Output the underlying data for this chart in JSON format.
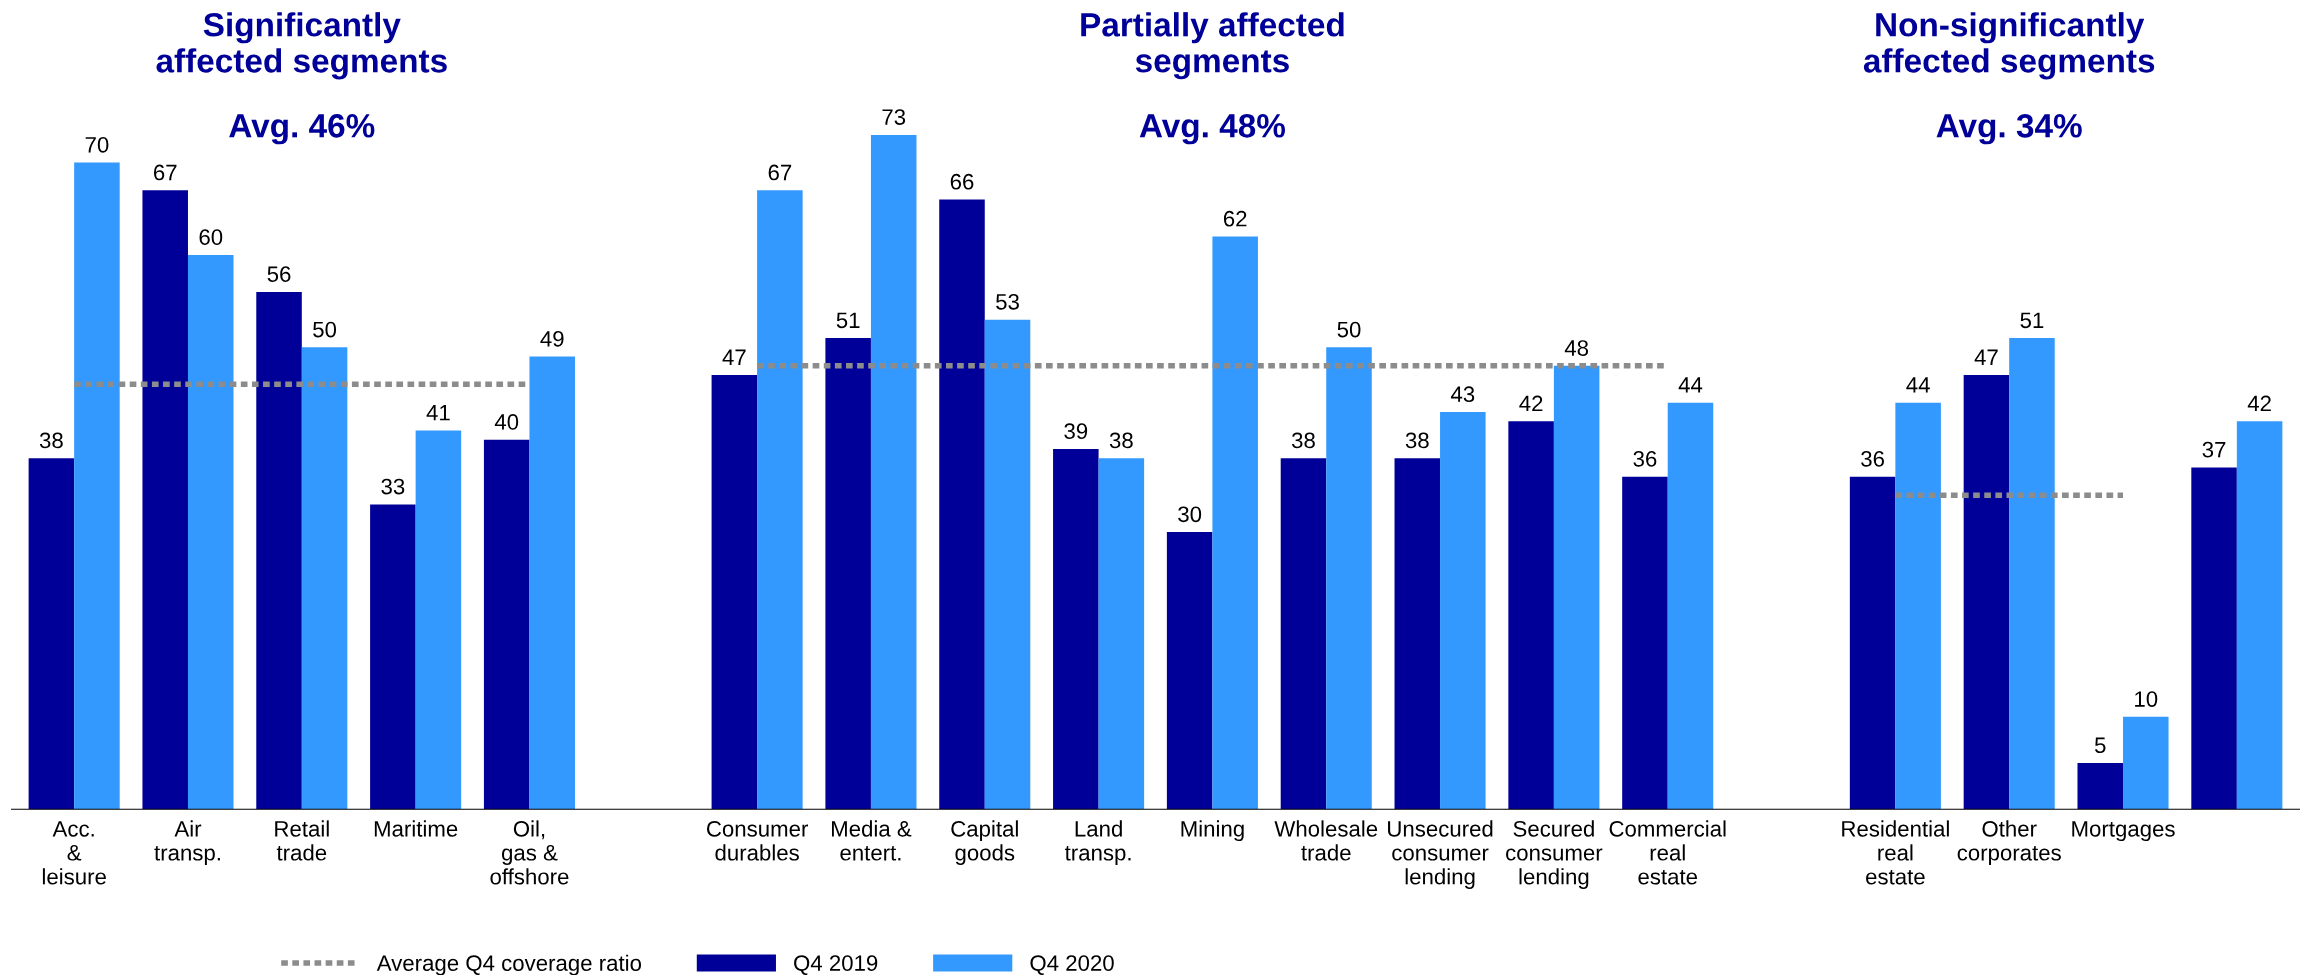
{
  "chart_data": {
    "type": "bar",
    "categories": [
      "Acc.\n&\nleisure",
      "Air\ntransp.",
      "Retail\ntrade",
      "Maritime",
      "Oil,\ngas &\noffshore",
      null,
      "Consumer\ndurables",
      "Media &\nentert.",
      "Capital\ngoods",
      "Land\ntransp.",
      "Mining",
      "Wholesale\ntrade",
      "Unsecured\nconsumer\nlending",
      "Secured\nconsumer\nlending",
      "Commercial\nreal\nestate",
      null,
      "Residential\nreal\nestate",
      "Other\ncorporates",
      "Mortgages",
      null
    ],
    "series": [
      {
        "name": "Average Q4 coverage ratio",
        "type": "line",
        "color": "#8c8c8c",
        "line_style": "dotted",
        "value_labels": [
          null,
          null,
          null,
          null,
          null,
          null,
          null,
          null,
          null,
          null,
          null,
          null,
          null,
          null,
          null,
          null,
          null,
          null,
          null,
          null
        ],
        "values": [
          46,
          46,
          46,
          46,
          46,
          null,
          48,
          48,
          48,
          48,
          48,
          48,
          48,
          48,
          48,
          null,
          34,
          34,
          34,
          null
        ]
      },
      {
        "name": "Q4 2019",
        "color": "#000099",
        "values": [
          38,
          67,
          56,
          33,
          40,
          null,
          47,
          51,
          66,
          39,
          30,
          38,
          38,
          42,
          36,
          null,
          36,
          47,
          5,
          37
        ]
      },
      {
        "name": "Q4 2020",
        "color": "#3399ff",
        "values": [
          70,
          60,
          50,
          41,
          49,
          null,
          67,
          73,
          53,
          38,
          62,
          50,
          43,
          48,
          44,
          null,
          44,
          51,
          10,
          42
        ]
      }
    ],
    "annotations": [
      "Significantly\naffected segments",
      "Avg. 46%",
      "Partially affected\nsegments",
      "Avg. 48%",
      "Non-significantly\naffected segments",
      "Avg. 34%"
    ],
    "data_labels": true,
    "legend": "bottom",
    "tick_labels": "x",
    "grid": false
  }
}
